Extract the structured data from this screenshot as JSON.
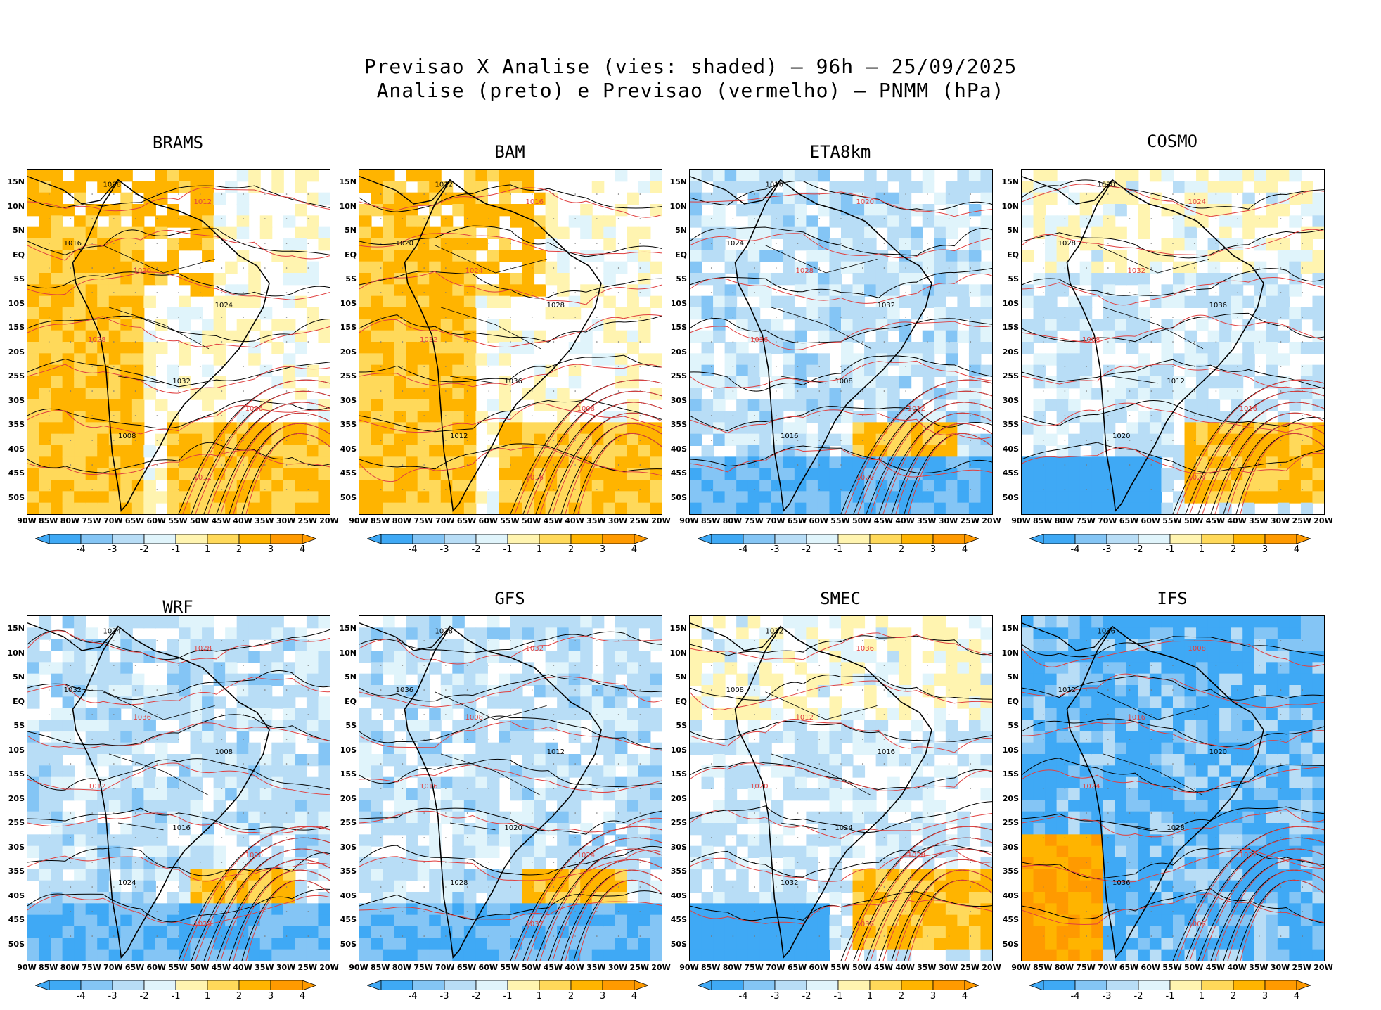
{
  "header": {
    "line1": "Previsao X Analise (vies: shaded) – 96h – 25/09/2025",
    "line2": "Analise (preto) e Previsao (vermelho) – PNMM (hPa)"
  },
  "panels": [
    {
      "name": "BRAMS",
      "bias": "warm"
    },
    {
      "name": "BAM",
      "bias": "warm"
    },
    {
      "name": "ETA8km",
      "bias": "cool"
    },
    {
      "name": "COSMO",
      "bias": "mixed"
    },
    {
      "name": "WRF",
      "bias": "cool"
    },
    {
      "name": "GFS",
      "bias": "cool"
    },
    {
      "name": "SMEC",
      "bias": "mixed"
    },
    {
      "name": "IFS",
      "bias": "cold"
    }
  ],
  "axes": {
    "lat_labels": [
      "15N",
      "10N",
      "5N",
      "EQ",
      "5S",
      "10S",
      "15S",
      "20S",
      "25S",
      "30S",
      "35S",
      "40S",
      "45S",
      "50S"
    ],
    "lon_labels": [
      "90W",
      "85W",
      "80W",
      "75W",
      "70W",
      "65W",
      "60W",
      "55W",
      "50W",
      "45W",
      "40W",
      "35W",
      "30W",
      "25W",
      "20W"
    ]
  },
  "colorbar": {
    "labels": [
      "-4",
      "-3",
      "-2",
      "-1",
      "1",
      "2",
      "3",
      "4"
    ],
    "colors": [
      "#3fa9f5",
      "#84c5f5",
      "#b8ddf6",
      "#e0f4fb",
      "#ffffff",
      "#fff4b0",
      "#ffd95a",
      "#ffb400",
      "#ff9a00"
    ]
  },
  "isobar_labels": [
    "1008",
    "1012",
    "1016",
    "1020",
    "1024",
    "1028",
    "1032",
    "1036"
  ],
  "colors": {
    "analysis_line": "#000000",
    "forecast_line": "#e04040",
    "land_line": "#000000"
  }
}
